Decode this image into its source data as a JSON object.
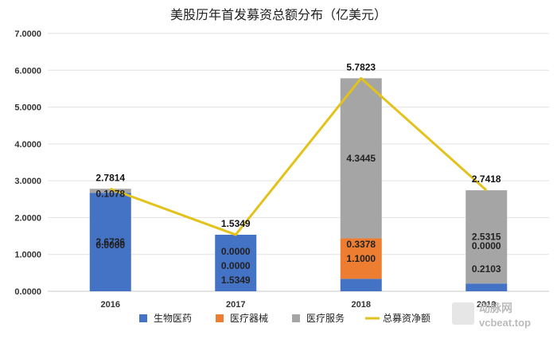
{
  "chart_data": {
    "type": "bar",
    "stacked": true,
    "title": "美股历年首发募资总额分布（亿美元）",
    "categories": [
      "2016",
      "2017",
      "2018",
      "2019"
    ],
    "ylim": [
      0,
      7
    ],
    "yticks": [
      "0.0000",
      "1.0000",
      "2.0000",
      "3.0000",
      "4.0000",
      "5.0000",
      "6.0000",
      "7.0000"
    ],
    "grid": true,
    "legend_position": "bottom",
    "series": [
      {
        "name": "生物医药",
        "color": "#4472C4",
        "values": [
          2.6736,
          1.5349,
          0.3378,
          0.2103
        ],
        "labels": [
          "2.6736",
          "1.5349",
          "0.3378",
          "0.2103"
        ]
      },
      {
        "name": "医疗器械",
        "color": "#ED7D31",
        "values": [
          0.0,
          0.0,
          1.1,
          0.0
        ],
        "labels": [
          "0.0000",
          "0.0000",
          "1.1000",
          "0.0000"
        ]
      },
      {
        "name": "医疗服务",
        "color": "#A5A5A5",
        "values": [
          0.1078,
          0.0,
          4.3445,
          2.5315
        ],
        "labels": [
          "0.1078",
          "0.0000",
          "4.3445",
          "2.5315"
        ]
      }
    ],
    "line": {
      "name": "总募资净额",
      "color": "#E3C21B",
      "values": [
        2.7814,
        1.5349,
        5.7823,
        2.7418
      ],
      "labels": [
        "2.7814",
        "1.5349",
        "5.7823",
        "2.7418"
      ]
    }
  },
  "watermark": {
    "brand": "动脉网",
    "site": "vcbeat.top"
  }
}
